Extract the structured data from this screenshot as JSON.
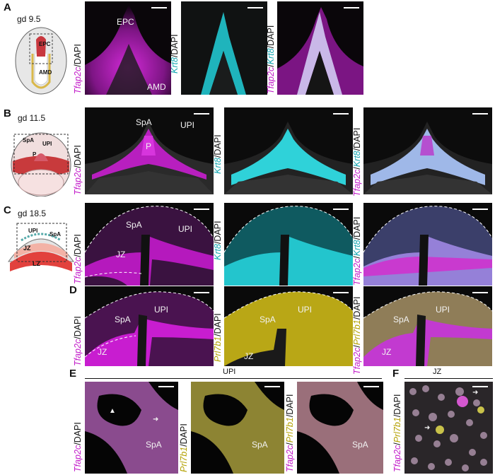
{
  "panels": {
    "A": {
      "letter": "A",
      "stage": "gd 9.5",
      "schematic_labels": [
        "EPC",
        "AMD"
      ],
      "image_tags": [
        "EPC",
        "AMD"
      ]
    },
    "B": {
      "letter": "B",
      "stage": "gd 11.5",
      "schematic_labels": [
        "SpA",
        "UPI",
        "P"
      ],
      "image_tags": [
        "SpA",
        "UPI",
        "P"
      ]
    },
    "C": {
      "letter": "C",
      "stage": "gd 18.5",
      "schematic_labels": [
        "UPI",
        "SpA",
        "JZ",
        "LZ"
      ],
      "image_tags": [
        "SpA",
        "UPI",
        "JZ"
      ]
    },
    "D": {
      "letter": "D",
      "image_tags": [
        "SpA",
        "UPI",
        "JZ"
      ]
    },
    "E": {
      "letter": "E",
      "header": "UPI",
      "image_tags": [
        "SpA"
      ]
    },
    "F": {
      "letter": "F",
      "header": "JZ"
    }
  },
  "stain_labels": {
    "tfap2c": "Tfap2c",
    "krt8": "Krt8",
    "prl7b1": "Prl7b1",
    "dapi": "/DAPI",
    "slash": "/"
  },
  "colors": {
    "magenta": "#c21bc9",
    "cyan": "#17a8b3",
    "yellow": "#b3a000",
    "background": "#050505"
  }
}
